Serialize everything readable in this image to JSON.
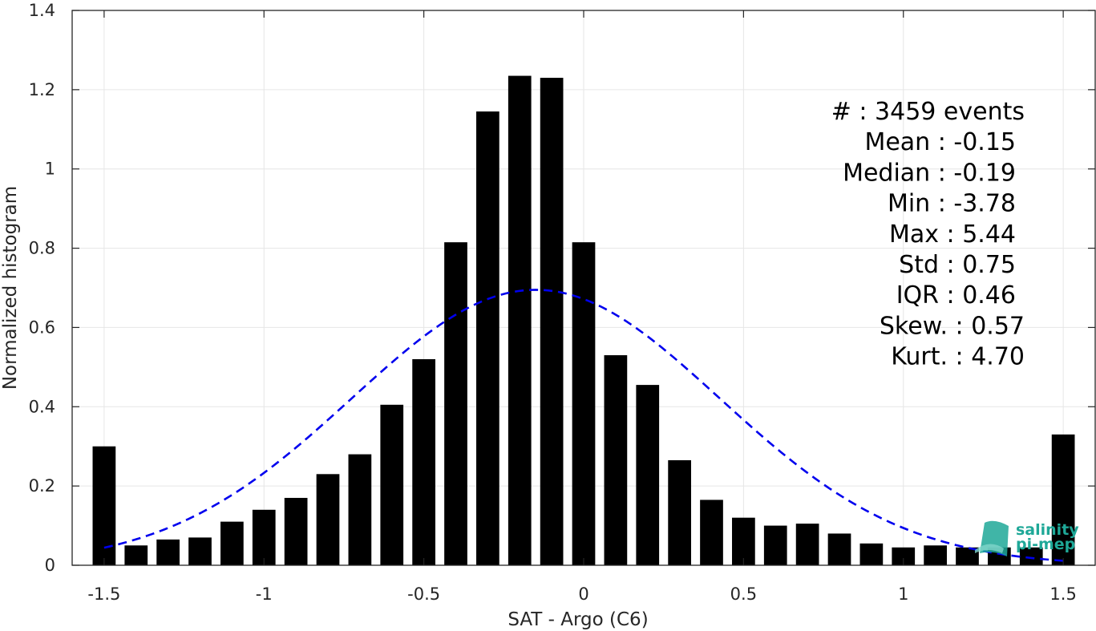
{
  "chart_data": {
    "type": "bar",
    "xlabel": "SAT - Argo (C6)",
    "ylabel": "Normalized histogram",
    "xlim": [
      -1.6,
      1.6
    ],
    "ylim": [
      0,
      1.4
    ],
    "xticks": [
      -1.5,
      -1,
      -0.5,
      0,
      0.5,
      1,
      1.5
    ],
    "xtick_labels": [
      "-1.5",
      "-1",
      "-0.5",
      "0",
      "0.5",
      "1",
      "1.5"
    ],
    "yticks": [
      0,
      0.2,
      0.4,
      0.6,
      0.8,
      1,
      1.2,
      1.4
    ],
    "ytick_labels": [
      "0",
      "0.2",
      "0.4",
      "0.6",
      "0.8",
      "1",
      "1.2",
      "1.4"
    ],
    "grid": true,
    "bar_color": "#000000",
    "bars": {
      "x": [
        -1.5,
        -1.4,
        -1.3,
        -1.2,
        -1.1,
        -1.0,
        -0.9,
        -0.8,
        -0.7,
        -0.6,
        -0.5,
        -0.4,
        -0.3,
        -0.2,
        -0.1,
        0.0,
        0.1,
        0.2,
        0.3,
        0.4,
        0.5,
        0.6,
        0.7,
        0.8,
        0.9,
        1.0,
        1.1,
        1.2,
        1.3,
        1.4,
        1.5
      ],
      "values": [
        0.3,
        0.05,
        0.065,
        0.07,
        0.11,
        0.14,
        0.17,
        0.23,
        0.28,
        0.405,
        0.52,
        0.815,
        1.145,
        1.235,
        1.23,
        0.815,
        0.53,
        0.455,
        0.265,
        0.165,
        0.12,
        0.1,
        0.105,
        0.08,
        0.055,
        0.045,
        0.05,
        0.045,
        0.045,
        0.045,
        0.33
      ]
    },
    "fit_curve": {
      "type": "gaussian",
      "mean": -0.15,
      "std": 0.575,
      "peak": 0.695,
      "color": "#0000ee",
      "style": "dashed",
      "x_range": [
        -1.5,
        1.5
      ]
    },
    "stats": [
      {
        "label": "#  : 3459 events"
      },
      {
        "label": "Mean : -0.15"
      },
      {
        "label": "Median : -0.19"
      },
      {
        "label": "Min : -3.78"
      },
      {
        "label": "Max : 5.44"
      },
      {
        "label": "Std : 0.75"
      },
      {
        "label": "IQR : 0.46"
      },
      {
        "label": "Skew. : 0.57"
      },
      {
        "label": "Kurt. : 4.70"
      }
    ]
  },
  "logo": {
    "line1": "salinity",
    "line2": "pi-mep"
  }
}
